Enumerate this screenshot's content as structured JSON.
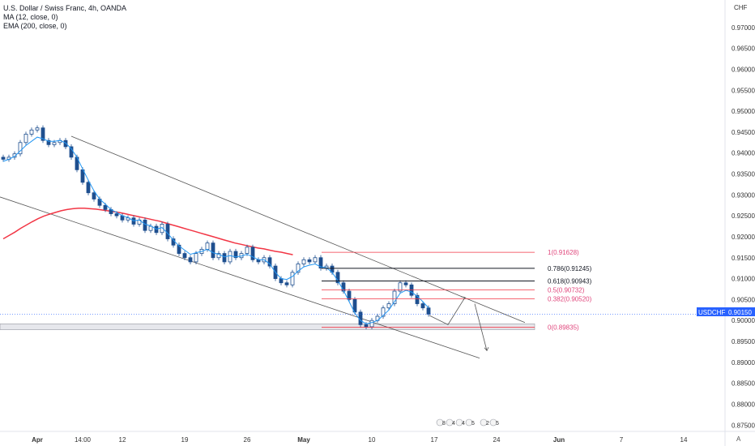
{
  "legend": {
    "title": "U.S. Dollar / Swiss Franc, 4h, OANDA",
    "ma": "MA (12, close, 0)",
    "ema": "EMA (200, close, 0)"
  },
  "currency_label": "CHF",
  "price_badge": {
    "symbol": "USDCHF",
    "value": "0.90150"
  },
  "auto_label": "A",
  "event_icons": [
    "8",
    "4",
    "4",
    "5",
    "2",
    "5"
  ],
  "chart_data": {
    "type": "candlestick",
    "title": "U.S. Dollar / Swiss Franc, 4h, OANDA",
    "ylim": [
      0.8735,
      0.975
    ],
    "y_ticks": [
      "0.97000",
      "0.96500",
      "0.96000",
      "0.95500",
      "0.95000",
      "0.94500",
      "0.94000",
      "0.93500",
      "0.93000",
      "0.92500",
      "0.92000",
      "0.91500",
      "0.91000",
      "0.90500",
      "0.90000",
      "0.89500",
      "0.89000",
      "0.88500",
      "0.88000",
      "0.87500"
    ],
    "x_ticks": [
      {
        "label": "Apr",
        "bold": true,
        "i": 6
      },
      {
        "label": "14:00",
        "bold": false,
        "i": 14
      },
      {
        "label": "12",
        "bold": false,
        "i": 21
      },
      {
        "label": "19",
        "bold": false,
        "i": 32
      },
      {
        "label": "26",
        "bold": false,
        "i": 43
      },
      {
        "label": "May",
        "bold": true,
        "i": 53
      },
      {
        "label": "10",
        "bold": false,
        "i": 65
      },
      {
        "label": "17",
        "bold": false,
        "i": 76
      },
      {
        "label": "24",
        "bold": false,
        "i": 87
      },
      {
        "label": "Jun",
        "bold": true,
        "i": 98
      },
      {
        "label": "7",
        "bold": false,
        "i": 109
      },
      {
        "label": "14",
        "bold": false,
        "i": 120
      }
    ],
    "close_series": [
      0.9385,
      0.939,
      0.9398,
      0.9425,
      0.9445,
      0.9455,
      0.946,
      0.943,
      0.942,
      0.9425,
      0.943,
      0.9415,
      0.939,
      0.936,
      0.933,
      0.9305,
      0.929,
      0.9275,
      0.9265,
      0.9255,
      0.925,
      0.924,
      0.9245,
      0.923,
      0.924,
      0.9215,
      0.9225,
      0.921,
      0.923,
      0.9195,
      0.918,
      0.916,
      0.915,
      0.914,
      0.916,
      0.917,
      0.9185,
      0.915,
      0.916,
      0.914,
      0.9165,
      0.915,
      0.916,
      0.9175,
      0.9145,
      0.914,
      0.915,
      0.913,
      0.91,
      0.909,
      0.9085,
      0.9115,
      0.9135,
      0.9145,
      0.914,
      0.915,
      0.9125,
      0.913,
      0.9115,
      0.909,
      0.907,
      0.905,
      0.902,
      0.899,
      0.8985,
      0.9,
      0.901,
      0.903,
      0.904,
      0.907,
      0.909,
      0.9085,
      0.906,
      0.904,
      0.903,
      0.9015
    ],
    "ma12": [
      0.938,
      0.9385,
      0.9392,
      0.9405,
      0.9418,
      0.9428,
      0.9438,
      0.9434,
      0.9428,
      0.9428,
      0.943,
      0.9424,
      0.941,
      0.939,
      0.9362,
      0.9335,
      0.931,
      0.929,
      0.9278,
      0.9265,
      0.9258,
      0.925,
      0.9246,
      0.9238,
      0.924,
      0.923,
      0.9226,
      0.9218,
      0.9222,
      0.9208,
      0.9192,
      0.9178,
      0.9168,
      0.9158,
      0.9162,
      0.9165,
      0.917,
      0.9162,
      0.9158,
      0.9152,
      0.9155,
      0.9152,
      0.9154,
      0.9158,
      0.9152,
      0.9145,
      0.9145,
      0.9135,
      0.9115,
      0.91,
      0.9098,
      0.9105,
      0.9118,
      0.9128,
      0.9132,
      0.9135,
      0.9128,
      0.9126,
      0.9115,
      0.9095,
      0.9072,
      0.9045,
      0.9018,
      0.9,
      0.8992,
      0.8995,
      0.9,
      0.9012,
      0.9025,
      0.9045,
      0.9065,
      0.9072,
      0.9068,
      0.9058,
      0.9045,
      0.903
    ],
    "ema200": [
      0.9195,
      0.9203,
      0.9211,
      0.922,
      0.9228,
      0.9236,
      0.9243,
      0.9249,
      0.9254,
      0.9258,
      0.9262,
      0.9265,
      0.9267,
      0.9268,
      0.9268,
      0.9267,
      0.9266,
      0.9264,
      0.9262,
      0.926,
      0.9258,
      0.9255,
      0.9252,
      0.9249,
      0.9246,
      0.9243,
      0.924,
      0.9237,
      0.9233,
      0.9229,
      0.9225,
      0.9221,
      0.9217,
      0.9213,
      0.9209,
      0.9205,
      0.9201,
      0.9197,
      0.9193,
      0.9189,
      0.9185,
      0.9182,
      0.9179,
      0.9176,
      0.9173,
      0.9171,
      0.9168,
      0.9165,
      0.9163,
      0.916,
      0.9157
    ],
    "fib_levels": [
      {
        "ratio": "1",
        "label": "1(0.91628)",
        "value": 0.91628,
        "color": "#f23645",
        "text_color": "#e0457b"
      },
      {
        "ratio": "0.786",
        "label": "0.786(0.91245)",
        "value": 0.91245,
        "color": "#131722",
        "text_color": "#131722"
      },
      {
        "ratio": "0.618",
        "label": "0.618(0.90943)",
        "value": 0.90943,
        "color": "#131722",
        "text_color": "#131722"
      },
      {
        "ratio": "0.5",
        "label": "0.5(0.90732)",
        "value": 0.90732,
        "color": "#f23645",
        "text_color": "#e0457b"
      },
      {
        "ratio": "0.382",
        "label": "0.382(0.90520)",
        "value": 0.9052,
        "color": "#f23645",
        "text_color": "#e0457b"
      },
      {
        "ratio": "0",
        "label": "0(0.89835)",
        "value": 0.89835,
        "color": "#f23645",
        "text_color": "#e0457b"
      }
    ],
    "current_price": 0.9015,
    "support_zone": [
      0.8978,
      0.8992
    ],
    "colors": {
      "candle": "#1e4f8f",
      "ma": "#2196f3",
      "ema": "#f23645",
      "channel": "#555555",
      "badge": "#2962ff"
    }
  }
}
